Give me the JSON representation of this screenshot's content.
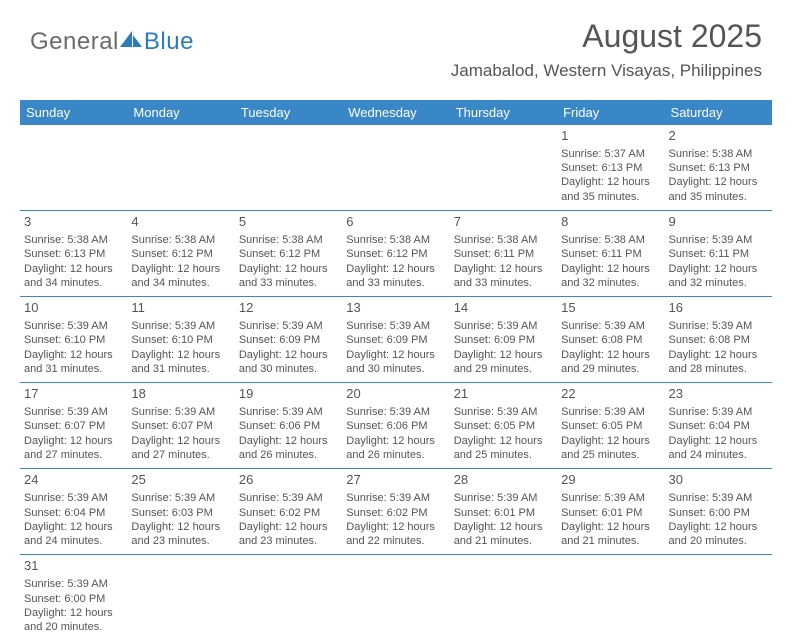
{
  "branding": {
    "part1": "General",
    "part2": "Blue"
  },
  "header": {
    "month_title": "August 2025",
    "location": "Jamabalod, Western Visayas, Philippines"
  },
  "colors": {
    "header_bg": "#3a87c8",
    "header_fg": "#ffffff",
    "text": "#555555",
    "rule": "#3a87c8",
    "logo_gray": "#6b6b6b",
    "logo_blue": "#2b7bbd"
  },
  "calendar": {
    "day_names": [
      "Sunday",
      "Monday",
      "Tuesday",
      "Wednesday",
      "Thursday",
      "Friday",
      "Saturday"
    ],
    "weeks": [
      [
        null,
        null,
        null,
        null,
        null,
        {
          "daynum": "1",
          "sunrise": "Sunrise: 5:37 AM",
          "sunset": "Sunset: 6:13 PM",
          "daylight": "Daylight: 12 hours and 35 minutes."
        },
        {
          "daynum": "2",
          "sunrise": "Sunrise: 5:38 AM",
          "sunset": "Sunset: 6:13 PM",
          "daylight": "Daylight: 12 hours and 35 minutes."
        }
      ],
      [
        {
          "daynum": "3",
          "sunrise": "Sunrise: 5:38 AM",
          "sunset": "Sunset: 6:13 PM",
          "daylight": "Daylight: 12 hours and 34 minutes."
        },
        {
          "daynum": "4",
          "sunrise": "Sunrise: 5:38 AM",
          "sunset": "Sunset: 6:12 PM",
          "daylight": "Daylight: 12 hours and 34 minutes."
        },
        {
          "daynum": "5",
          "sunrise": "Sunrise: 5:38 AM",
          "sunset": "Sunset: 6:12 PM",
          "daylight": "Daylight: 12 hours and 33 minutes."
        },
        {
          "daynum": "6",
          "sunrise": "Sunrise: 5:38 AM",
          "sunset": "Sunset: 6:12 PM",
          "daylight": "Daylight: 12 hours and 33 minutes."
        },
        {
          "daynum": "7",
          "sunrise": "Sunrise: 5:38 AM",
          "sunset": "Sunset: 6:11 PM",
          "daylight": "Daylight: 12 hours and 33 minutes."
        },
        {
          "daynum": "8",
          "sunrise": "Sunrise: 5:38 AM",
          "sunset": "Sunset: 6:11 PM",
          "daylight": "Daylight: 12 hours and 32 minutes."
        },
        {
          "daynum": "9",
          "sunrise": "Sunrise: 5:39 AM",
          "sunset": "Sunset: 6:11 PM",
          "daylight": "Daylight: 12 hours and 32 minutes."
        }
      ],
      [
        {
          "daynum": "10",
          "sunrise": "Sunrise: 5:39 AM",
          "sunset": "Sunset: 6:10 PM",
          "daylight": "Daylight: 12 hours and 31 minutes."
        },
        {
          "daynum": "11",
          "sunrise": "Sunrise: 5:39 AM",
          "sunset": "Sunset: 6:10 PM",
          "daylight": "Daylight: 12 hours and 31 minutes."
        },
        {
          "daynum": "12",
          "sunrise": "Sunrise: 5:39 AM",
          "sunset": "Sunset: 6:09 PM",
          "daylight": "Daylight: 12 hours and 30 minutes."
        },
        {
          "daynum": "13",
          "sunrise": "Sunrise: 5:39 AM",
          "sunset": "Sunset: 6:09 PM",
          "daylight": "Daylight: 12 hours and 30 minutes."
        },
        {
          "daynum": "14",
          "sunrise": "Sunrise: 5:39 AM",
          "sunset": "Sunset: 6:09 PM",
          "daylight": "Daylight: 12 hours and 29 minutes."
        },
        {
          "daynum": "15",
          "sunrise": "Sunrise: 5:39 AM",
          "sunset": "Sunset: 6:08 PM",
          "daylight": "Daylight: 12 hours and 29 minutes."
        },
        {
          "daynum": "16",
          "sunrise": "Sunrise: 5:39 AM",
          "sunset": "Sunset: 6:08 PM",
          "daylight": "Daylight: 12 hours and 28 minutes."
        }
      ],
      [
        {
          "daynum": "17",
          "sunrise": "Sunrise: 5:39 AM",
          "sunset": "Sunset: 6:07 PM",
          "daylight": "Daylight: 12 hours and 27 minutes."
        },
        {
          "daynum": "18",
          "sunrise": "Sunrise: 5:39 AM",
          "sunset": "Sunset: 6:07 PM",
          "daylight": "Daylight: 12 hours and 27 minutes."
        },
        {
          "daynum": "19",
          "sunrise": "Sunrise: 5:39 AM",
          "sunset": "Sunset: 6:06 PM",
          "daylight": "Daylight: 12 hours and 26 minutes."
        },
        {
          "daynum": "20",
          "sunrise": "Sunrise: 5:39 AM",
          "sunset": "Sunset: 6:06 PM",
          "daylight": "Daylight: 12 hours and 26 minutes."
        },
        {
          "daynum": "21",
          "sunrise": "Sunrise: 5:39 AM",
          "sunset": "Sunset: 6:05 PM",
          "daylight": "Daylight: 12 hours and 25 minutes."
        },
        {
          "daynum": "22",
          "sunrise": "Sunrise: 5:39 AM",
          "sunset": "Sunset: 6:05 PM",
          "daylight": "Daylight: 12 hours and 25 minutes."
        },
        {
          "daynum": "23",
          "sunrise": "Sunrise: 5:39 AM",
          "sunset": "Sunset: 6:04 PM",
          "daylight": "Daylight: 12 hours and 24 minutes."
        }
      ],
      [
        {
          "daynum": "24",
          "sunrise": "Sunrise: 5:39 AM",
          "sunset": "Sunset: 6:04 PM",
          "daylight": "Daylight: 12 hours and 24 minutes."
        },
        {
          "daynum": "25",
          "sunrise": "Sunrise: 5:39 AM",
          "sunset": "Sunset: 6:03 PM",
          "daylight": "Daylight: 12 hours and 23 minutes."
        },
        {
          "daynum": "26",
          "sunrise": "Sunrise: 5:39 AM",
          "sunset": "Sunset: 6:02 PM",
          "daylight": "Daylight: 12 hours and 23 minutes."
        },
        {
          "daynum": "27",
          "sunrise": "Sunrise: 5:39 AM",
          "sunset": "Sunset: 6:02 PM",
          "daylight": "Daylight: 12 hours and 22 minutes."
        },
        {
          "daynum": "28",
          "sunrise": "Sunrise: 5:39 AM",
          "sunset": "Sunset: 6:01 PM",
          "daylight": "Daylight: 12 hours and 21 minutes."
        },
        {
          "daynum": "29",
          "sunrise": "Sunrise: 5:39 AM",
          "sunset": "Sunset: 6:01 PM",
          "daylight": "Daylight: 12 hours and 21 minutes."
        },
        {
          "daynum": "30",
          "sunrise": "Sunrise: 5:39 AM",
          "sunset": "Sunset: 6:00 PM",
          "daylight": "Daylight: 12 hours and 20 minutes."
        }
      ],
      [
        {
          "daynum": "31",
          "sunrise": "Sunrise: 5:39 AM",
          "sunset": "Sunset: 6:00 PM",
          "daylight": "Daylight: 12 hours and 20 minutes."
        },
        null,
        null,
        null,
        null,
        null,
        null
      ]
    ]
  }
}
